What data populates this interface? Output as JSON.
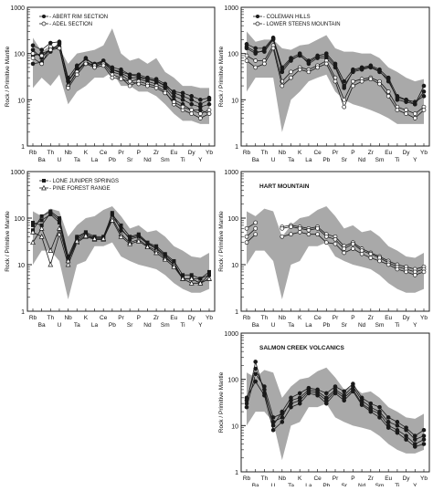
{
  "figure": {
    "y_ticks": [
      "1000",
      "100",
      "10",
      "1"
    ],
    "y_label": "Rock / Primitive Mantle",
    "x_top": [
      "Rb",
      "Th",
      "Nb",
      "K",
      "Ce",
      "Pr",
      "P",
      "Zr",
      "Eu",
      "Dy",
      "Yb"
    ],
    "x_bottom": [
      "Ba",
      "U",
      "Ta",
      "La",
      "Pb",
      "Sr",
      "Nd",
      "Sm",
      "Ti",
      "Y"
    ],
    "colors": {
      "band": "#a9a9a9",
      "line": "#1a1a1a",
      "open_fill": "#ffffff"
    }
  },
  "chart_data": [
    {
      "type": "line",
      "y_scale": "log",
      "ylim": [
        1,
        1000
      ],
      "categories": [
        "Rb",
        "Ba",
        "Th",
        "U",
        "Nb",
        "Ta",
        "K",
        "La",
        "Ce",
        "Pb",
        "Pr",
        "Sr",
        "P",
        "Nd",
        "Zr",
        "Sm",
        "Eu",
        "Ti",
        "Dy",
        "Y",
        "Yb"
      ],
      "band": {
        "upper": [
          220,
          110,
          150,
          130,
          60,
          100,
          110,
          120,
          150,
          350,
          100,
          70,
          80,
          60,
          80,
          40,
          30,
          20,
          20,
          18,
          18
        ],
        "lower": [
          18,
          30,
          20,
          35,
          8,
          15,
          20,
          30,
          30,
          40,
          20,
          20,
          15,
          15,
          12,
          8,
          5,
          3.5,
          3.5,
          3,
          3
        ]
      },
      "series": [
        {
          "name": "ABERT RIM SECTION",
          "marker": "filled-circle",
          "lines": [
            [
              150,
              120,
              170,
              180,
              25,
              50,
              80,
              55,
              70,
              45,
              40,
              35,
              32,
              28,
              25,
              20,
              12,
              10,
              8,
              7,
              8
            ],
            [
              120,
              80,
              130,
              140,
              20,
              42,
              70,
              50,
              65,
              40,
              35,
              25,
              28,
              25,
              22,
              18,
              10,
              8,
              6,
              6,
              5
            ],
            [
              90,
              100,
              120,
              160,
              30,
              55,
              75,
              60,
              70,
              50,
              45,
              35,
              35,
              30,
              28,
              22,
              14,
              12,
              10,
              8,
              10
            ],
            [
              60,
              65,
              110,
              170,
              25,
              45,
              60,
              58,
              65,
              45,
              38,
              30,
              30,
              28,
              26,
              20,
              15,
              14,
              12,
              10,
              11
            ]
          ]
        },
        {
          "name": "ADEL SECTION",
          "marker": "open-circle",
          "lines": [
            [
              80,
              60,
              140,
              130,
              20,
              40,
              65,
              55,
              60,
              35,
              30,
              20,
              25,
              22,
              20,
              15,
              8,
              6,
              5,
              4,
              5
            ],
            [
              100,
              90,
              120,
              130,
              18,
              35,
              60,
              50,
              55,
              30,
              28,
              25,
              22,
              20,
              18,
              14,
              9,
              7,
              6,
              5,
              6
            ]
          ]
        }
      ]
    },
    {
      "type": "line",
      "y_scale": "log",
      "ylim": [
        1,
        1000
      ],
      "categories": [
        "Rb",
        "Ba",
        "Th",
        "U",
        "Nb",
        "Ta",
        "K",
        "La",
        "Ce",
        "Pb",
        "Pr",
        "Sr",
        "P",
        "Nd",
        "Zr",
        "Sm",
        "Eu",
        "Ti",
        "Dy",
        "Y",
        "Yb"
      ],
      "band": {
        "upper": [
          300,
          180,
          200,
          200,
          130,
          120,
          150,
          160,
          200,
          250,
          130,
          110,
          110,
          100,
          100,
          80,
          50,
          40,
          30,
          25,
          28
        ],
        "lower": [
          15,
          30,
          30,
          30,
          2,
          10,
          15,
          25,
          30,
          35,
          15,
          10,
          8,
          7,
          6,
          5,
          4,
          3,
          3,
          3,
          3
        ]
      },
      "series": [
        {
          "name": "COLEMAN HILLS",
          "marker": "filled-circle",
          "lines": [
            [
              160,
              130,
              130,
              220,
              50,
              80,
              100,
              70,
              90,
              100,
              60,
              25,
              45,
              50,
              55,
              45,
              30,
              12,
              10,
              8,
              20
            ],
            [
              140,
              110,
              110,
              200,
              45,
              75,
              90,
              65,
              85,
              90,
              55,
              20,
              40,
              45,
              50,
              40,
              28,
              10,
              9,
              8,
              15
            ],
            [
              130,
              100,
              120,
              210,
              40,
              70,
              95,
              60,
              80,
              80,
              50,
              18,
              42,
              48,
              52,
              42,
              25,
              11,
              10,
              9,
              12
            ]
          ]
        },
        {
          "name": "LOWER STEENS MOUNTAIN",
          "marker": "open-circle",
          "lines": [
            [
              90,
              70,
              70,
              150,
              25,
              40,
              50,
              45,
              55,
              70,
              30,
              10,
              25,
              28,
              30,
              25,
              15,
              7,
              6,
              5,
              7
            ],
            [
              70,
              50,
              60,
              130,
              20,
              30,
              45,
              40,
              50,
              60,
              25,
              7,
              20,
              25,
              28,
              22,
              12,
              6,
              5,
              4,
              6
            ]
          ]
        }
      ]
    },
    {
      "type": "line",
      "y_scale": "log",
      "ylim": [
        1,
        1000
      ],
      "categories": [
        "Rb",
        "Ba",
        "Th",
        "U",
        "Nb",
        "Ta",
        "K",
        "La",
        "Ce",
        "Pb",
        "Pr",
        "Sr",
        "P",
        "Nd",
        "Zr",
        "Sm",
        "Eu",
        "Ti",
        "Dy",
        "Y",
        "Yb"
      ],
      "band": {
        "upper": [
          140,
          110,
          160,
          140,
          40,
          70,
          100,
          110,
          150,
          180,
          110,
          60,
          70,
          50,
          55,
          40,
          25,
          20,
          15,
          14,
          18
        ],
        "lower": [
          10,
          20,
          20,
          12,
          1.8,
          10,
          12,
          25,
          25,
          30,
          15,
          12,
          10,
          9,
          8,
          6,
          4,
          3,
          2.5,
          2.5,
          3
        ]
      },
      "series": [
        {
          "name": "LONE JUNIPER SPRINGS",
          "marker": "filled-square",
          "lines": [
            [
              55,
              110,
              140,
              100,
              15,
              40,
              50,
              40,
              40,
              120,
              70,
              40,
              45,
              30,
              25,
              17,
              12,
              6,
              6,
              5,
              7
            ],
            [
              70,
              90,
              120,
              80,
              12,
              35,
              45,
              38,
              38,
              110,
              60,
              35,
              40,
              28,
              22,
              15,
              10,
              5,
              5,
              4,
              6
            ],
            [
              80,
              70,
              130,
              90,
              13,
              38,
              48,
              35,
              35,
              130,
              55,
              38,
              42,
              29,
              23,
              16,
              11,
              5,
              5,
              5,
              6
            ]
          ]
        },
        {
          "name": "PINE FOREST RANGE",
          "marker": "open-triangle",
          "lines": [
            [
              50,
              40,
              10,
              45,
              10,
              30,
              40,
              35,
              35,
              100,
              45,
              30,
              35,
              25,
              20,
              14,
              10,
              5,
              5,
              4,
              5
            ],
            [
              30,
              60,
              20,
              60,
              12,
              32,
              42,
              36,
              36,
              90,
              40,
              28,
              32,
              24,
              18,
              13,
              9,
              5,
              4,
              4,
              5
            ]
          ]
        }
      ]
    },
    {
      "type": "line",
      "y_scale": "log",
      "ylim": [
        1,
        1000
      ],
      "categories": [
        "Rb",
        "Ba",
        "Th",
        "U",
        "Nb",
        "Ta",
        "K",
        "La",
        "Ce",
        "Pb",
        "Pr",
        "Sr",
        "P",
        "Nd",
        "Zr",
        "Sm",
        "Eu",
        "Ti",
        "Dy",
        "Y",
        "Yb"
      ],
      "band": {
        "upper": [
          140,
          110,
          160,
          140,
          40,
          70,
          100,
          110,
          150,
          180,
          110,
          60,
          70,
          50,
          55,
          40,
          25,
          20,
          15,
          14,
          18
        ],
        "lower": [
          10,
          20,
          20,
          12,
          1.8,
          10,
          12,
          25,
          25,
          30,
          15,
          12,
          10,
          9,
          8,
          6,
          4,
          3,
          2.5,
          2.5,
          3
        ]
      },
      "series": [
        {
          "name": "",
          "marker": "open-circle",
          "lines": [
            [
              60,
              80,
              null,
              null,
              65,
              70,
              65,
              60,
              65,
              45,
              40,
              25,
              30,
              22,
              18,
              15,
              12,
              10,
              9,
              8,
              9
            ],
            [
              40,
              60,
              null,
              null,
              60,
              65,
              60,
              55,
              60,
              40,
              35,
              22,
              28,
              20,
              17,
              14,
              11,
              9,
              8,
              7,
              8
            ],
            [
              30,
              45,
              null,
              null,
              40,
              45,
              50,
              45,
              45,
              30,
              28,
              18,
              22,
              17,
              14,
              12,
              10,
              8,
              7,
              6,
              7
            ]
          ]
        }
      ]
    },
    {
      "type": "line",
      "y_scale": "log",
      "ylim": [
        1,
        1000
      ],
      "categories": [
        "Rb",
        "Ba",
        "Th",
        "U",
        "Nb",
        "Ta",
        "K",
        "La",
        "Ce",
        "Pb",
        "Pr",
        "Sr",
        "P",
        "Nd",
        "Zr",
        "Sm",
        "Eu",
        "Ti",
        "Dy",
        "Y",
        "Yb"
      ],
      "band": {
        "upper": [
          140,
          110,
          160,
          140,
          40,
          70,
          100,
          110,
          150,
          180,
          110,
          60,
          70,
          50,
          55,
          40,
          25,
          20,
          15,
          14,
          18
        ],
        "lower": [
          10,
          20,
          20,
          12,
          1.8,
          10,
          12,
          25,
          25,
          30,
          15,
          12,
          10,
          9,
          8,
          6,
          4,
          3,
          2.5,
          2.5,
          3
        ]
      },
      "series": [
        {
          "name": "",
          "marker": "filled-circle",
          "lines": [
            [
              35,
              170,
              60,
              10,
              20,
              40,
              50,
              65,
              60,
              50,
              70,
              55,
              80,
              40,
              30,
              25,
              15,
              12,
              9,
              6,
              8
            ],
            [
              30,
              240,
              50,
              12,
              15,
              35,
              40,
              60,
              55,
              40,
              60,
              45,
              70,
              35,
              25,
              20,
              12,
              10,
              8,
              5,
              6
            ],
            [
              25,
              130,
              70,
              15,
              18,
              30,
              35,
              55,
              50,
              35,
              55,
              40,
              60,
              30,
              22,
              18,
              10,
              8,
              6,
              4,
              5
            ],
            [
              40,
              90,
              45,
              8,
              12,
              25,
              30,
              50,
              45,
              30,
              50,
              35,
              55,
              28,
              20,
              15,
              9,
              7,
              5,
              3.5,
              4
            ]
          ]
        }
      ]
    }
  ],
  "panels": [
    {
      "legend": [
        "ABERT RIM SECTION",
        "ADEL SECTION"
      ],
      "x_top_sparse": false
    },
    {
      "legend": [
        "COLEMAN HILLS",
        "LOWER STEENS MOUNTAIN"
      ]
    },
    {
      "legend": [
        "LONE JUNIPER SPRINGS",
        "PINE FOREST RANGE"
      ]
    },
    {
      "legend": [
        "HART MOUNTAIN"
      ]
    },
    {
      "legend": [
        "SALMON CREEK VOLCANICS"
      ]
    }
  ]
}
